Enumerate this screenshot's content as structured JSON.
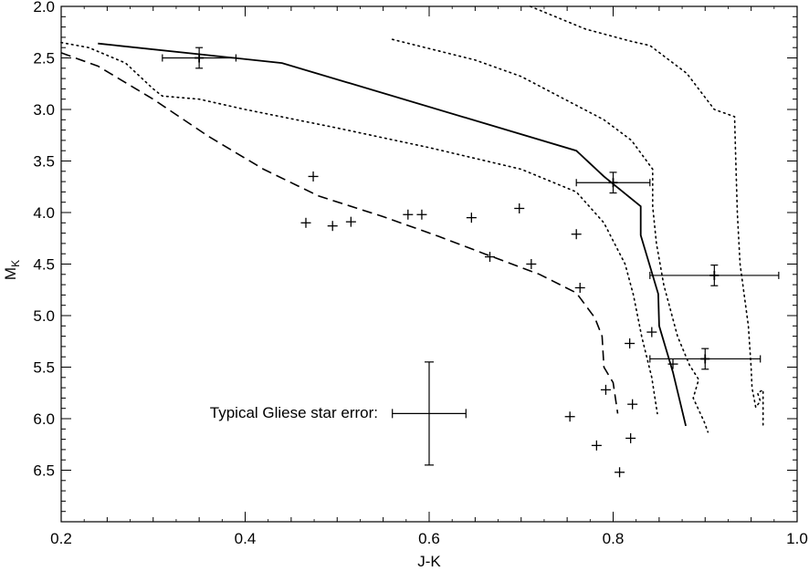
{
  "chart_data": {
    "type": "scatter",
    "title": "",
    "xlabel": "J-K",
    "ylabel_main": "M",
    "ylabel_sub": "K",
    "xlim": [
      0.2,
      1.0
    ],
    "ylim": [
      7.0,
      2.0
    ],
    "y_inverted": true,
    "grid": false,
    "x_ticks": [
      "0.2",
      "0.4",
      "0.6",
      "0.8",
      "1.0"
    ],
    "y_ticks": [
      "2.0",
      "2.5",
      "3.0",
      "3.5",
      "4.0",
      "4.5",
      "5.0",
      "5.5",
      "6.0",
      "6.5"
    ],
    "plus_points": [
      [
        0.474,
        3.65
      ],
      [
        0.466,
        4.1
      ],
      [
        0.495,
        4.13
      ],
      [
        0.515,
        4.09
      ],
      [
        0.577,
        4.02
      ],
      [
        0.592,
        4.02
      ],
      [
        0.646,
        4.05
      ],
      [
        0.698,
        3.96
      ],
      [
        0.666,
        4.43
      ],
      [
        0.711,
        4.5
      ],
      [
        0.76,
        4.21
      ],
      [
        0.764,
        4.73
      ],
      [
        0.842,
        5.16
      ],
      [
        0.818,
        5.27
      ],
      [
        0.865,
        5.47
      ],
      [
        0.792,
        5.72
      ],
      [
        0.821,
        5.86
      ],
      [
        0.753,
        5.98
      ],
      [
        0.819,
        6.19
      ],
      [
        0.782,
        6.26
      ],
      [
        0.807,
        6.52
      ]
    ],
    "error_points": [
      {
        "x": 0.35,
        "y": 2.5,
        "xerr": 0.04,
        "yerr": 0.1
      },
      {
        "x": 0.8,
        "y": 3.71,
        "xerr": 0.04,
        "yerr": 0.1
      },
      {
        "x": 0.91,
        "y": 4.61,
        "xerr": 0.07,
        "yerr": 0.1
      },
      {
        "x": 0.9,
        "y": 5.42,
        "xerr": 0.06,
        "yerr": 0.1
      }
    ],
    "typical_error": {
      "x": 0.6,
      "y": 5.95,
      "xerr": 0.04,
      "yerr": 0.5
    },
    "annotation": "Typical Gliese star error:",
    "curves": [
      {
        "style": "solid",
        "points": [
          [
            0.24,
            2.36
          ],
          [
            0.44,
            2.55
          ],
          [
            0.76,
            3.4
          ],
          [
            0.79,
            3.65
          ],
          [
            0.83,
            3.94
          ],
          [
            0.83,
            4.22
          ],
          [
            0.849,
            4.79
          ],
          [
            0.85,
            5.1
          ],
          [
            0.865,
            5.55
          ],
          [
            0.879,
            6.07
          ]
        ]
      },
      {
        "style": "dashed",
        "points": [
          [
            0.2,
            2.45
          ],
          [
            0.24,
            2.58
          ],
          [
            0.3,
            2.9
          ],
          [
            0.36,
            3.26
          ],
          [
            0.42,
            3.58
          ],
          [
            0.48,
            3.84
          ],
          [
            0.55,
            4.04
          ],
          [
            0.61,
            4.23
          ],
          [
            0.66,
            4.4
          ],
          [
            0.72,
            4.6
          ],
          [
            0.76,
            4.78
          ],
          [
            0.78,
            5.02
          ],
          [
            0.788,
            5.2
          ],
          [
            0.79,
            5.5
          ],
          [
            0.8,
            5.65
          ],
          [
            0.805,
            5.95
          ]
        ]
      },
      {
        "style": "dotted",
        "points": [
          [
            0.2,
            2.35
          ],
          [
            0.23,
            2.4
          ],
          [
            0.27,
            2.55
          ],
          [
            0.3,
            2.8
          ],
          [
            0.31,
            2.87
          ],
          [
            0.35,
            2.9
          ],
          [
            0.4,
            3.0
          ],
          [
            0.5,
            3.18
          ],
          [
            0.6,
            3.37
          ],
          [
            0.7,
            3.58
          ],
          [
            0.76,
            3.8
          ],
          [
            0.79,
            4.1
          ],
          [
            0.813,
            4.5
          ],
          [
            0.822,
            4.8
          ],
          [
            0.831,
            5.2
          ],
          [
            0.842,
            5.6
          ],
          [
            0.848,
            5.95
          ]
        ]
      },
      {
        "style": "dotted",
        "points": [
          [
            0.56,
            2.32
          ],
          [
            0.65,
            2.52
          ],
          [
            0.7,
            2.68
          ],
          [
            0.73,
            2.82
          ],
          [
            0.76,
            2.96
          ],
          [
            0.79,
            3.1
          ],
          [
            0.82,
            3.3
          ],
          [
            0.843,
            3.58
          ],
          [
            0.843,
            3.94
          ],
          [
            0.847,
            4.3
          ],
          [
            0.855,
            4.7
          ],
          [
            0.87,
            5.2
          ],
          [
            0.883,
            5.48
          ],
          [
            0.893,
            5.62
          ],
          [
            0.887,
            5.8
          ],
          [
            0.899,
            6.03
          ],
          [
            0.903,
            6.13
          ]
        ]
      },
      {
        "style": "dotted",
        "points": [
          [
            0.71,
            2.0
          ],
          [
            0.77,
            2.22
          ],
          [
            0.82,
            2.34
          ],
          [
            0.84,
            2.38
          ],
          [
            0.88,
            2.65
          ],
          [
            0.91,
            3.0
          ],
          [
            0.932,
            3.07
          ],
          [
            0.933,
            3.4
          ],
          [
            0.935,
            4.0
          ],
          [
            0.938,
            4.5
          ],
          [
            0.947,
            5.1
          ],
          [
            0.95,
            5.5
          ],
          [
            0.951,
            5.7
          ],
          [
            0.955,
            5.89
          ],
          [
            0.96,
            5.83
          ],
          [
            0.957,
            5.75
          ],
          [
            0.963,
            5.72
          ],
          [
            0.963,
            6.06
          ]
        ]
      }
    ]
  }
}
